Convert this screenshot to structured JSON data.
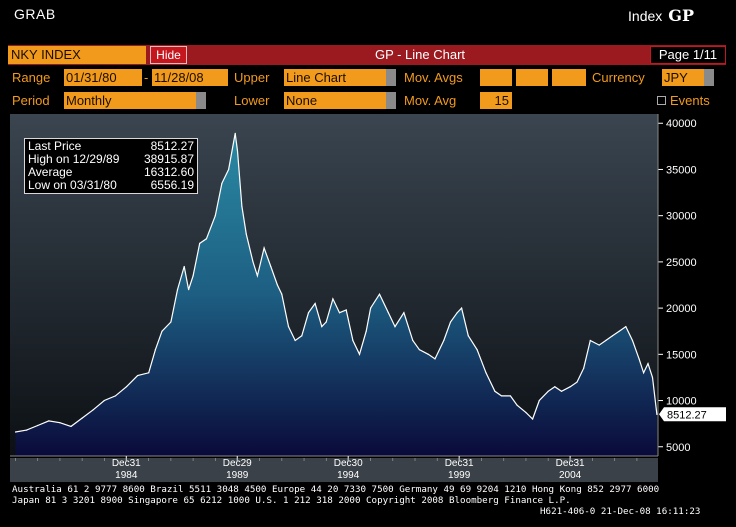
{
  "window": {
    "title": "GRAB",
    "index_label": "Index",
    "function_code": "GP"
  },
  "toolbar": {
    "ticker": "NKY INDEX",
    "hide_label": "Hide",
    "chart_title": "GP - Line Chart",
    "page": "Page 1/11"
  },
  "settings": {
    "range_label": "Range",
    "range_start": "01/31/80",
    "range_dash": "-",
    "range_end": "11/28/08",
    "upper_label": "Upper",
    "upper_value": "Line Chart",
    "mov_avgs_label": "Mov. Avgs",
    "mov_avgs_values": [
      "",
      "",
      ""
    ],
    "currency_label": "Currency",
    "currency_value": "JPY",
    "period_label": "Period",
    "period_value": "Monthly",
    "lower_label": "Lower",
    "lower_value": "None",
    "mov_avg_label": "Mov. Avg",
    "mov_avg_value": "15",
    "events_label": "Events"
  },
  "legend": [
    {
      "label": "Last Price",
      "value": "8512.27"
    },
    {
      "label": "High on 12/29/89",
      "value": "38915.87"
    },
    {
      "label": "Average",
      "value": "16312.60"
    },
    {
      "label": "Low on 03/31/80",
      "value": "6556.19"
    }
  ],
  "footer": {
    "line1": "Australia 61 2 9777 8600 Brazil 5511 3048 4500 Europe 44 20 7330 7500 Germany 49 69 9204 1210 Hong Kong 852 2977 6000",
    "line2": "Japan 81 3 3201 8900        Singapore 65 6212 1000       U.S. 1 212 318 2000          Copyright 2008 Bloomberg Finance L.P.",
    "line3": "H621-406-0 21-Dec-08 16:11:23"
  },
  "colors": {
    "accent": "#f29a1b",
    "bar_red": "#9b1a20",
    "fill_top": "#2a8aa3",
    "fill_bottom": "#0a0a3a"
  },
  "chart_data": {
    "type": "area",
    "title": "",
    "xlabel": "",
    "ylabel": "",
    "ylim": [
      4000,
      41000
    ],
    "y_ticks": [
      5000,
      10000,
      15000,
      20000,
      25000,
      30000,
      35000,
      40000
    ],
    "x_ticks": [
      {
        "day": "Dec31",
        "year": "1984",
        "x": 1984.99
      },
      {
        "day": "Dec29",
        "year": "1989",
        "x": 1989.99
      },
      {
        "day": "Dec30",
        "year": "1994",
        "x": 1994.99
      },
      {
        "day": "Dec31",
        "year": "1999",
        "x": 1999.99
      },
      {
        "day": "Dec31",
        "year": "2004",
        "x": 2004.99
      }
    ],
    "last_price_label": "8512.27",
    "last_value": 8512.27,
    "series": [
      {
        "x": [
          1980.0,
          1980.5,
          1981.0,
          1981.5,
          1982.0,
          1982.5,
          1983.0,
          1983.5,
          1984.0,
          1984.5,
          1985.0,
          1985.5,
          1986.0,
          1986.3,
          1986.6,
          1987.0,
          1987.3,
          1987.6,
          1987.8,
          1988.0,
          1988.3,
          1988.6,
          1989.0,
          1989.3,
          1989.6,
          1989.9,
          1990.0,
          1990.2,
          1990.4,
          1990.7,
          1990.9,
          1991.2,
          1991.5,
          1991.8,
          1992.0,
          1992.3,
          1992.6,
          1992.9,
          1993.2,
          1993.5,
          1993.8,
          1994.0,
          1994.3,
          1994.6,
          1994.9,
          1995.2,
          1995.5,
          1995.8,
          1996.0,
          1996.4,
          1996.8,
          1997.1,
          1997.5,
          1997.9,
          1998.2,
          1998.6,
          1998.9,
          1999.3,
          1999.6,
          1999.9,
          2000.1,
          2000.4,
          2000.8,
          2001.2,
          2001.6,
          2001.9,
          2002.3,
          2002.6,
          2003.0,
          2003.3,
          2003.6,
          2004.0,
          2004.3,
          2004.6,
          2005.0,
          2005.3,
          2005.6,
          2005.9,
          2006.3,
          2006.6,
          2006.9,
          2007.2,
          2007.5,
          2007.8,
          2008.1,
          2008.3,
          2008.5,
          2008.7,
          2008.9
        ],
        "y": [
          6600,
          6800,
          7300,
          7800,
          7600,
          7200,
          8100,
          9000,
          10000,
          10500,
          11500,
          12700,
          13000,
          15500,
          17500,
          18500,
          22000,
          24500,
          22000,
          23500,
          27000,
          27500,
          30000,
          33500,
          35000,
          38900,
          37000,
          31000,
          28000,
          25000,
          23500,
          26500,
          24500,
          22500,
          21500,
          18000,
          16500,
          17000,
          19500,
          20500,
          18000,
          18500,
          21000,
          19500,
          19800,
          16500,
          15000,
          17500,
          20000,
          21500,
          19500,
          18000,
          19500,
          16500,
          15500,
          15000,
          14500,
          16500,
          18500,
          19500,
          20000,
          17000,
          15500,
          13000,
          11000,
          10500,
          10500,
          9500,
          8700,
          8000,
          10000,
          11000,
          11500,
          11000,
          11500,
          12000,
          13500,
          16500,
          16000,
          16500,
          17000,
          17500,
          18000,
          16500,
          14500,
          13000,
          14000,
          12500,
          8500
        ]
      }
    ]
  }
}
